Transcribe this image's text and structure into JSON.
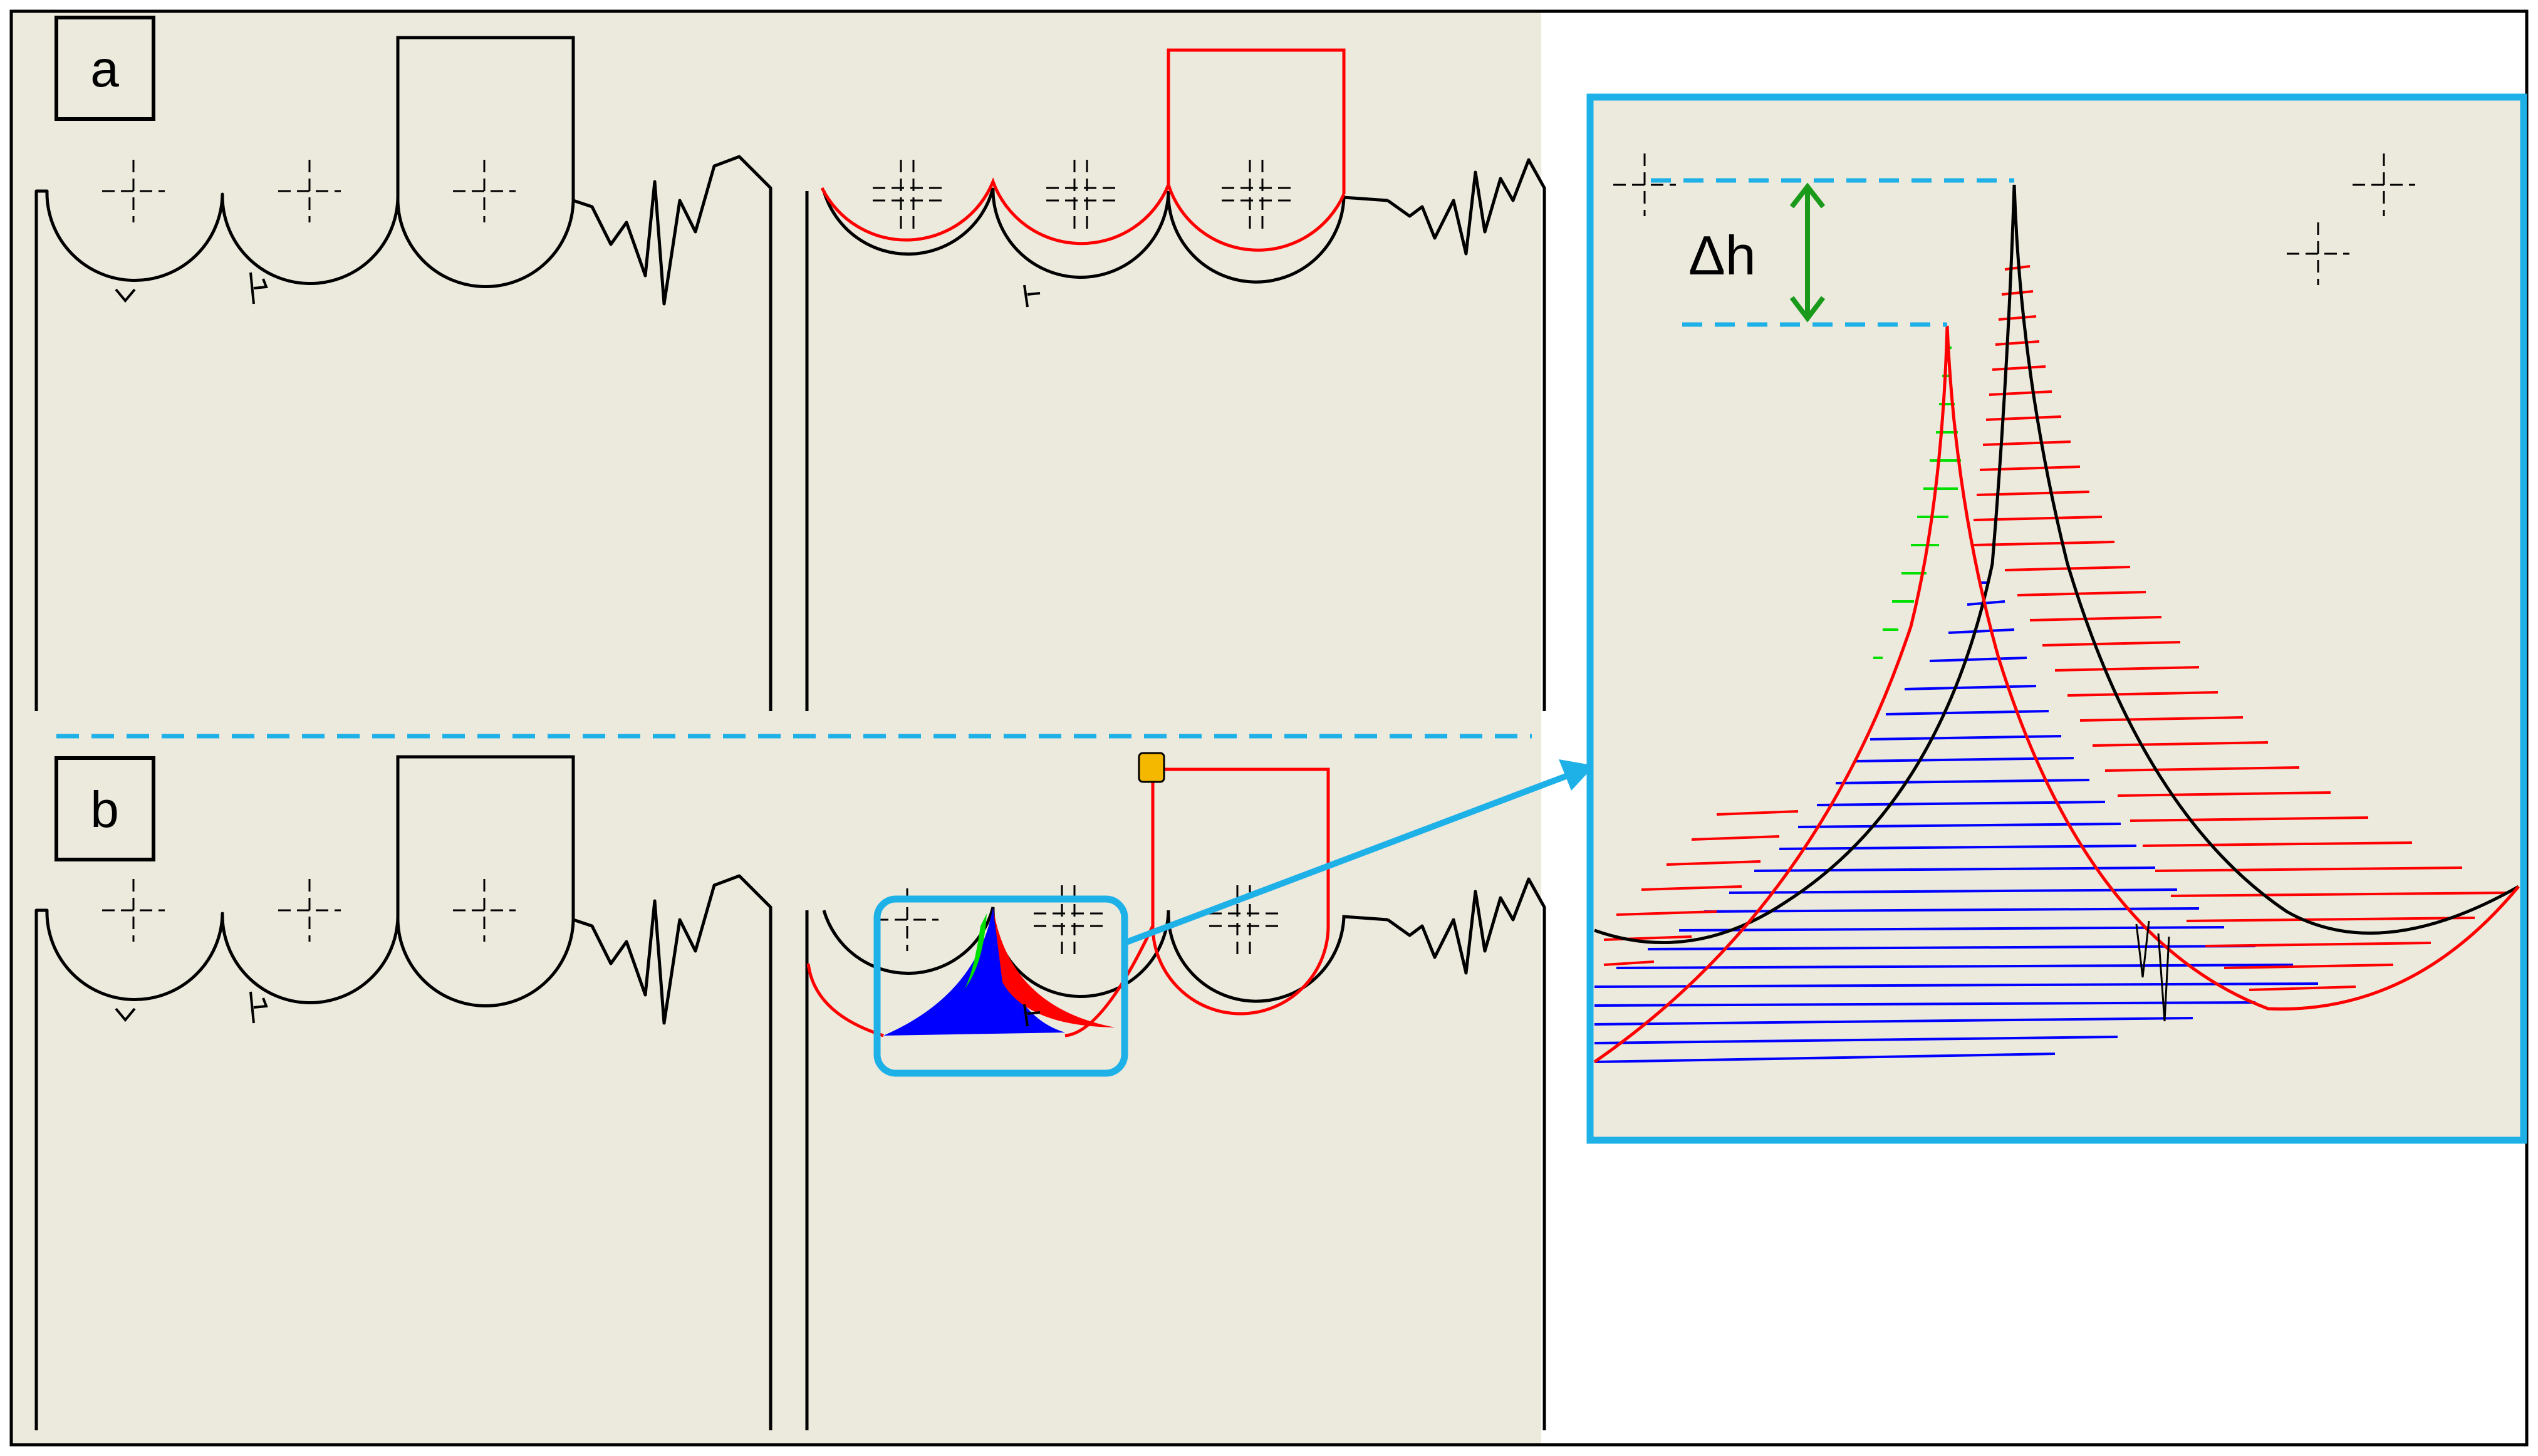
{
  "panels": [
    {
      "id": "a",
      "label": "a"
    },
    {
      "id": "b",
      "label": "b"
    }
  ],
  "zoom": {
    "delta_label": "Δh"
  },
  "colors": {
    "background": "#ece9dd",
    "outline": "#000000",
    "contour_compare": "#ff0000",
    "overlap_fill": "#0000ff",
    "excess_fill": "#ff0000",
    "gap_fill": "#00e000",
    "callout": "#1eb1e8",
    "marker": "#f5b800",
    "arrow": "#1a9a1a"
  }
}
